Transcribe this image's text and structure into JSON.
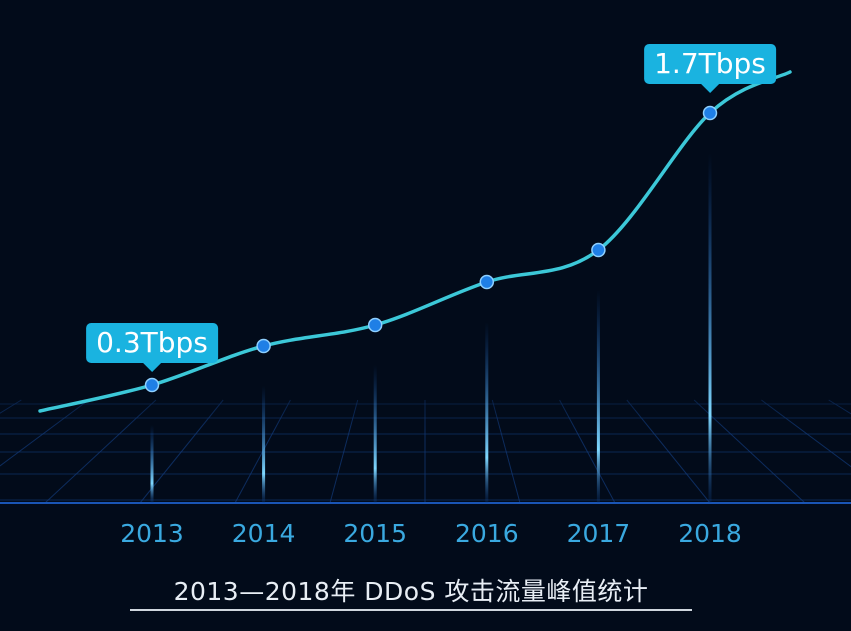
{
  "chart_data": {
    "type": "line",
    "title": "2013—2018年 DDoS 攻击流量峰值统计",
    "unit": "Tbps",
    "categories": [
      "2013",
      "2014",
      "2015",
      "2016",
      "2017",
      "2018"
    ],
    "values": [
      0.3,
      0.45,
      0.6,
      0.9,
      1.1,
      1.7
    ],
    "annotations": [
      {
        "index": 0,
        "label": "0.3Tbps"
      },
      {
        "index": 5,
        "label": "1.7Tbps"
      }
    ],
    "xlabel": "",
    "ylabel": "",
    "ylim": [
      0,
      2
    ],
    "grid": false,
    "colors": {
      "line": "#3cc8d8",
      "marker": "#1f7fe6",
      "callout": "#1ab3e0",
      "tick": "#3aa9e0",
      "background": "#020b1a"
    }
  }
}
